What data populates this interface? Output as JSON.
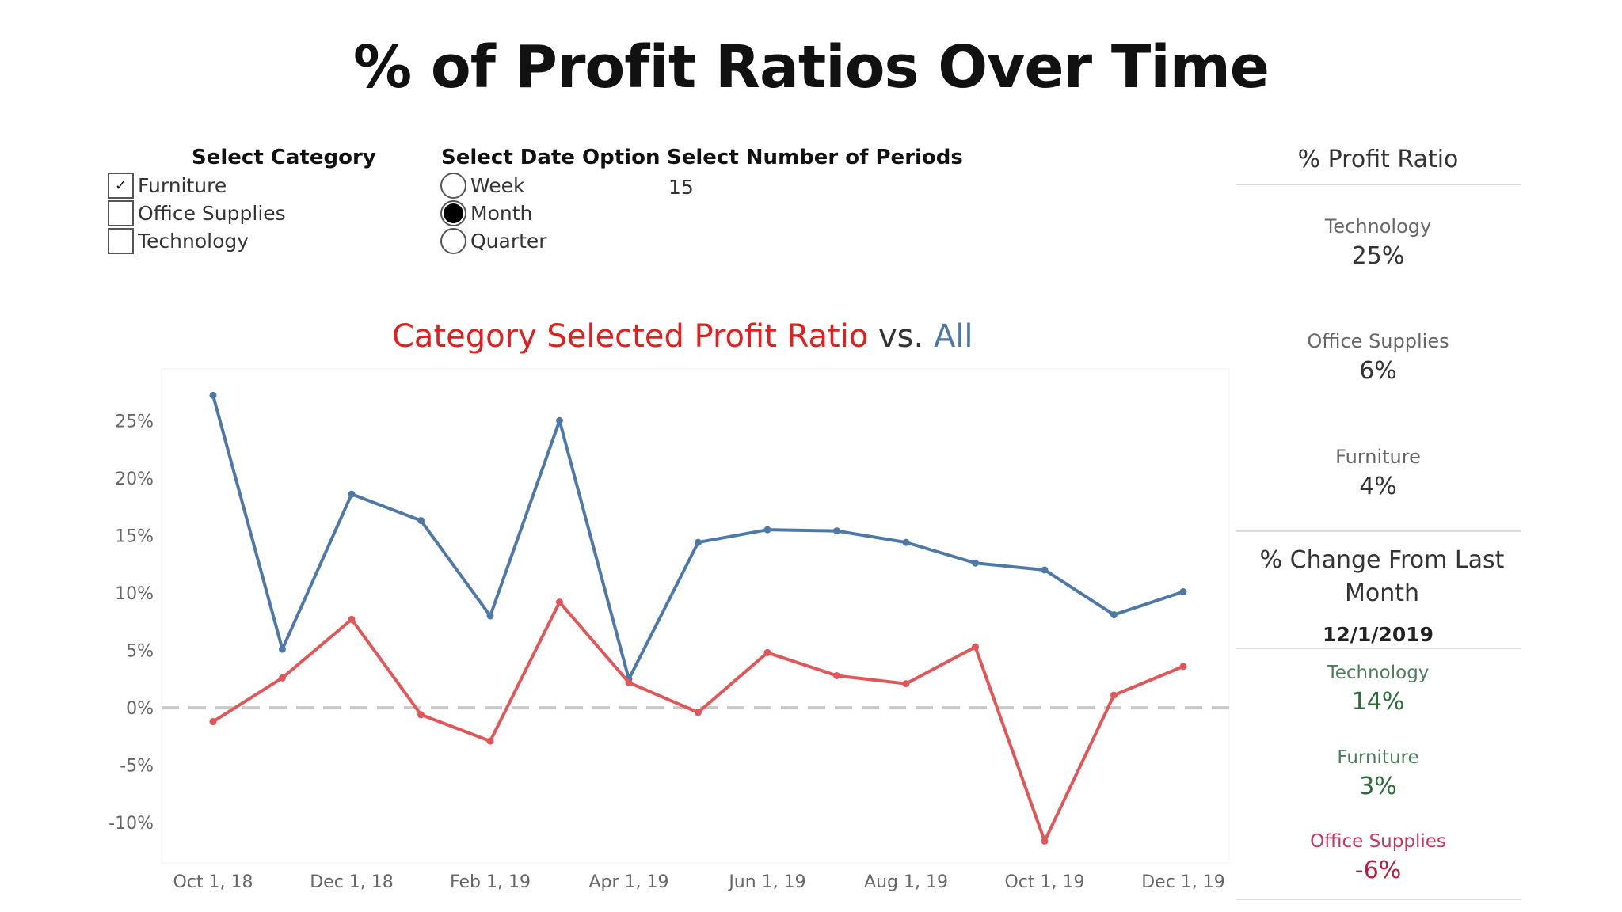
{
  "title": "% of Profit Ratios Over Time",
  "controls": {
    "category": {
      "label": "Select Category",
      "options": [
        {
          "label": "Furniture",
          "checked": true
        },
        {
          "label": "Office Supplies",
          "checked": false
        },
        {
          "label": "Technology",
          "checked": false
        }
      ]
    },
    "date_option": {
      "label": "Select Date Option",
      "options": [
        {
          "label": "Week",
          "selected": false
        },
        {
          "label": "Month",
          "selected": true
        },
        {
          "label": "Quarter",
          "selected": false
        }
      ]
    },
    "periods": {
      "label": "Select Number of Periods",
      "value": "15"
    }
  },
  "chart_data": {
    "type": "line",
    "title_parts": {
      "category": "Category Selected Profit Ratio",
      "vs": " vs. ",
      "all": "All"
    },
    "x": [
      "Oct 1, 18",
      "Nov 1, 18",
      "Dec 1, 18",
      "Jan 1, 19",
      "Feb 1, 19",
      "Mar 1, 19",
      "Apr 1, 19",
      "May 1, 19",
      "Jun 1, 19",
      "Jul 1, 19",
      "Aug 1, 19",
      "Sep 1, 19",
      "Oct 1, 19",
      "Nov 1, 19",
      "Dec 1, 19"
    ],
    "x_tick_labels": [
      "Oct 1, 18",
      "Dec 1, 18",
      "Feb 1, 19",
      "Apr 1, 19",
      "Jun 1, 19",
      "Aug 1, 19",
      "Oct 1, 19",
      "Dec 1, 19"
    ],
    "y_tick_labels": [
      "25%",
      "20%",
      "15%",
      "10%",
      "5%",
      "0%",
      "-5%",
      "-10%"
    ],
    "y_ticks": [
      25,
      20,
      15,
      10,
      5,
      0,
      -5,
      -10
    ],
    "ylim": [
      -13.5,
      29.5
    ],
    "zero_line": true,
    "series": [
      {
        "values": [
          27.2,
          5.1,
          18.6,
          16.3,
          8.0,
          25.0,
          2.5,
          14.4,
          15.5,
          15.4,
          14.4,
          12.6,
          12.0,
          8.1,
          10.1
        ],
        "color": "#4e79a7"
      },
      {
        "values": [
          -1.2,
          2.6,
          7.7,
          -0.6,
          -2.9,
          9.2,
          2.2,
          -0.4,
          4.8,
          2.8,
          2.1,
          5.3,
          -11.6,
          1.1,
          3.6
        ],
        "color": "#e15759"
      }
    ]
  },
  "sidebar": {
    "profit_ratio": {
      "heading": "% Profit Ratio",
      "items": [
        {
          "label": "Technology",
          "value": "25%"
        },
        {
          "label": "Office Supplies",
          "value": "6%"
        },
        {
          "label": "Furniture",
          "value": "4%"
        }
      ]
    },
    "change": {
      "heading": "% Change From Last Month",
      "date": "12/1/2019",
      "items": [
        {
          "label": "Technology",
          "value": "14%",
          "trend": "positive"
        },
        {
          "label": "Furniture",
          "value": "3%",
          "trend": "positive"
        },
        {
          "label": "Office Supplies",
          "value": "-6%",
          "trend": "negative"
        }
      ]
    }
  }
}
